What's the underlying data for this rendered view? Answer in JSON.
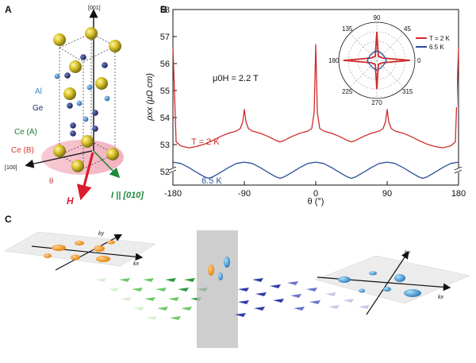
{
  "panels": {
    "a": "A",
    "b": "B",
    "c": "C"
  },
  "crystal": {
    "axis_001": "[001]",
    "axis_100": "[100]",
    "current": "I || [010]",
    "field": "H",
    "theta": "θ",
    "legend": [
      {
        "label": "Al",
        "color": "#3a8ac9"
      },
      {
        "label": "Ge",
        "color": "#1f2d6e"
      },
      {
        "label": "Ce (A)",
        "color": "#1e7a2e"
      },
      {
        "label": "Ce (B)",
        "color": "#d9382f"
      }
    ]
  },
  "chart_data": {
    "type": "line",
    "x_label": "θ (°)",
    "y_label": "ρxx (μΩ cm)",
    "x_ticks": [
      -180,
      -90,
      0,
      90,
      180
    ],
    "y_ticks": [
      52,
      53,
      54,
      55,
      56,
      57,
      58
    ],
    "xlim": [
      -180,
      180
    ],
    "ylim": [
      51.5,
      58
    ],
    "annotation": "μ0H = 2.2 T",
    "series": [
      {
        "name": "T = 2 K",
        "color": "#d12a2a",
        "x": [
          -180,
          -176,
          -170,
          -160,
          -150,
          -140,
          -130,
          -120,
          -110,
          -100,
          -95,
          -92,
          -90,
          -88,
          -85,
          -80,
          -70,
          -60,
          -50,
          -45,
          -40,
          -30,
          -20,
          -10,
          -5,
          -2,
          0,
          2,
          5,
          10,
          20,
          30,
          40,
          45,
          50,
          60,
          70,
          80,
          85,
          88,
          90,
          92,
          95,
          100,
          110,
          120,
          130,
          140,
          150,
          160,
          170,
          176,
          180
        ],
        "values": [
          56.6,
          53.1,
          52.95,
          52.88,
          52.93,
          53.02,
          53.15,
          53.3,
          53.42,
          53.5,
          53.6,
          53.85,
          54.3,
          53.85,
          53.6,
          53.5,
          53.42,
          53.3,
          53.15,
          53.1,
          53.15,
          53.3,
          53.42,
          53.5,
          53.6,
          54.2,
          56.7,
          54.2,
          53.6,
          53.5,
          53.42,
          53.3,
          53.15,
          53.1,
          53.15,
          53.3,
          53.42,
          53.5,
          53.6,
          53.85,
          54.3,
          53.85,
          53.6,
          53.5,
          53.42,
          53.3,
          53.15,
          53.02,
          52.93,
          52.88,
          52.95,
          53.1,
          56.6
        ]
      },
      {
        "name": "6.5 K",
        "color": "#2c4d9a",
        "x": [
          -180,
          -170,
          -160,
          -150,
          -140,
          -135,
          -130,
          -120,
          -110,
          -100,
          -90,
          -80,
          -70,
          -60,
          -50,
          -45,
          -40,
          -30,
          -20,
          -10,
          0,
          10,
          20,
          30,
          40,
          45,
          50,
          60,
          70,
          80,
          90,
          100,
          110,
          120,
          130,
          135,
          140,
          150,
          160,
          170,
          180
        ],
        "values": [
          52.35,
          52.3,
          52.15,
          51.97,
          51.8,
          51.75,
          51.8,
          51.97,
          52.15,
          52.3,
          52.35,
          52.3,
          52.15,
          51.97,
          51.8,
          51.75,
          51.8,
          51.97,
          52.15,
          52.3,
          52.35,
          52.3,
          52.15,
          51.97,
          51.8,
          51.75,
          51.8,
          51.97,
          52.15,
          52.3,
          52.35,
          52.3,
          52.15,
          51.97,
          51.8,
          51.75,
          51.8,
          51.97,
          52.15,
          52.3,
          52.35
        ]
      }
    ],
    "series_labels": {
      "red": "T = 2 K",
      "blue": "6.5 K"
    }
  },
  "polar_inset": {
    "angles": [
      "90",
      "45",
      "0",
      "315",
      "270",
      "225",
      "180",
      "135"
    ],
    "legend": [
      "T = 2 K",
      "6.5 K"
    ]
  },
  "panel_c": {
    "kx_label": "kx",
    "ky_label": "ky"
  }
}
